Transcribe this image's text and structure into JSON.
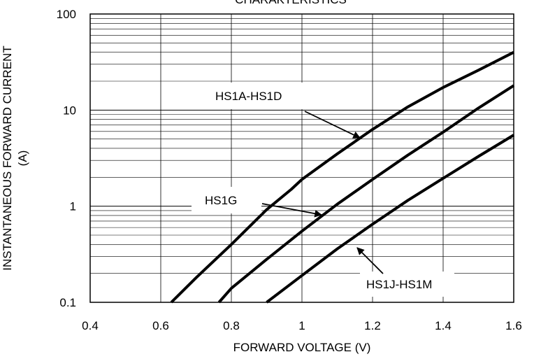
{
  "chart_data": {
    "type": "line",
    "title": "CHARAKTERISTICS",
    "xlabel": "FORWARD VOLTAGE (V)",
    "ylabel": "INSTANTANEOUS FORWARD CURRENT",
    "ylabel_unit": "(A)",
    "x_scale": "linear",
    "y_scale": "log",
    "xlim": [
      0.4,
      1.6
    ],
    "ylim": [
      0.1,
      100
    ],
    "x_ticks": [
      "0.4",
      "0.6",
      "0.8",
      "1",
      "1.2",
      "1.4",
      "1.6"
    ],
    "y_ticks": [
      "0.1",
      "1",
      "10",
      "100"
    ],
    "grid": true,
    "series": [
      {
        "name": "HS1A-HS1D",
        "x": [
          0.63,
          0.7,
          0.8,
          0.9,
          0.97,
          1.0,
          1.1,
          1.2,
          1.3,
          1.4,
          1.5,
          1.6
        ],
        "y": [
          0.1,
          0.18,
          0.4,
          0.92,
          1.5,
          1.9,
          3.5,
          6.3,
          10.8,
          17.2,
          26,
          40
        ]
      },
      {
        "name": "HS1G",
        "x": [
          0.765,
          0.8,
          0.9,
          1.0,
          1.1,
          1.2,
          1.3,
          1.4,
          1.5,
          1.6
        ],
        "y": [
          0.1,
          0.14,
          0.28,
          0.55,
          1.05,
          1.9,
          3.4,
          5.9,
          10.5,
          18
        ]
      },
      {
        "name": "HS1J-HS1M",
        "x": [
          0.9,
          1.0,
          1.1,
          1.2,
          1.3,
          1.4,
          1.5,
          1.6
        ],
        "y": [
          0.1,
          0.19,
          0.36,
          0.65,
          1.15,
          1.95,
          3.3,
          5.5
        ]
      }
    ],
    "annotations": [
      {
        "text": "HS1A-HS1D",
        "series": "HS1A-HS1D"
      },
      {
        "text": "HS1G",
        "series": "HS1G"
      },
      {
        "text": "HS1J-HS1M",
        "series": "HS1J-HS1M"
      }
    ]
  }
}
